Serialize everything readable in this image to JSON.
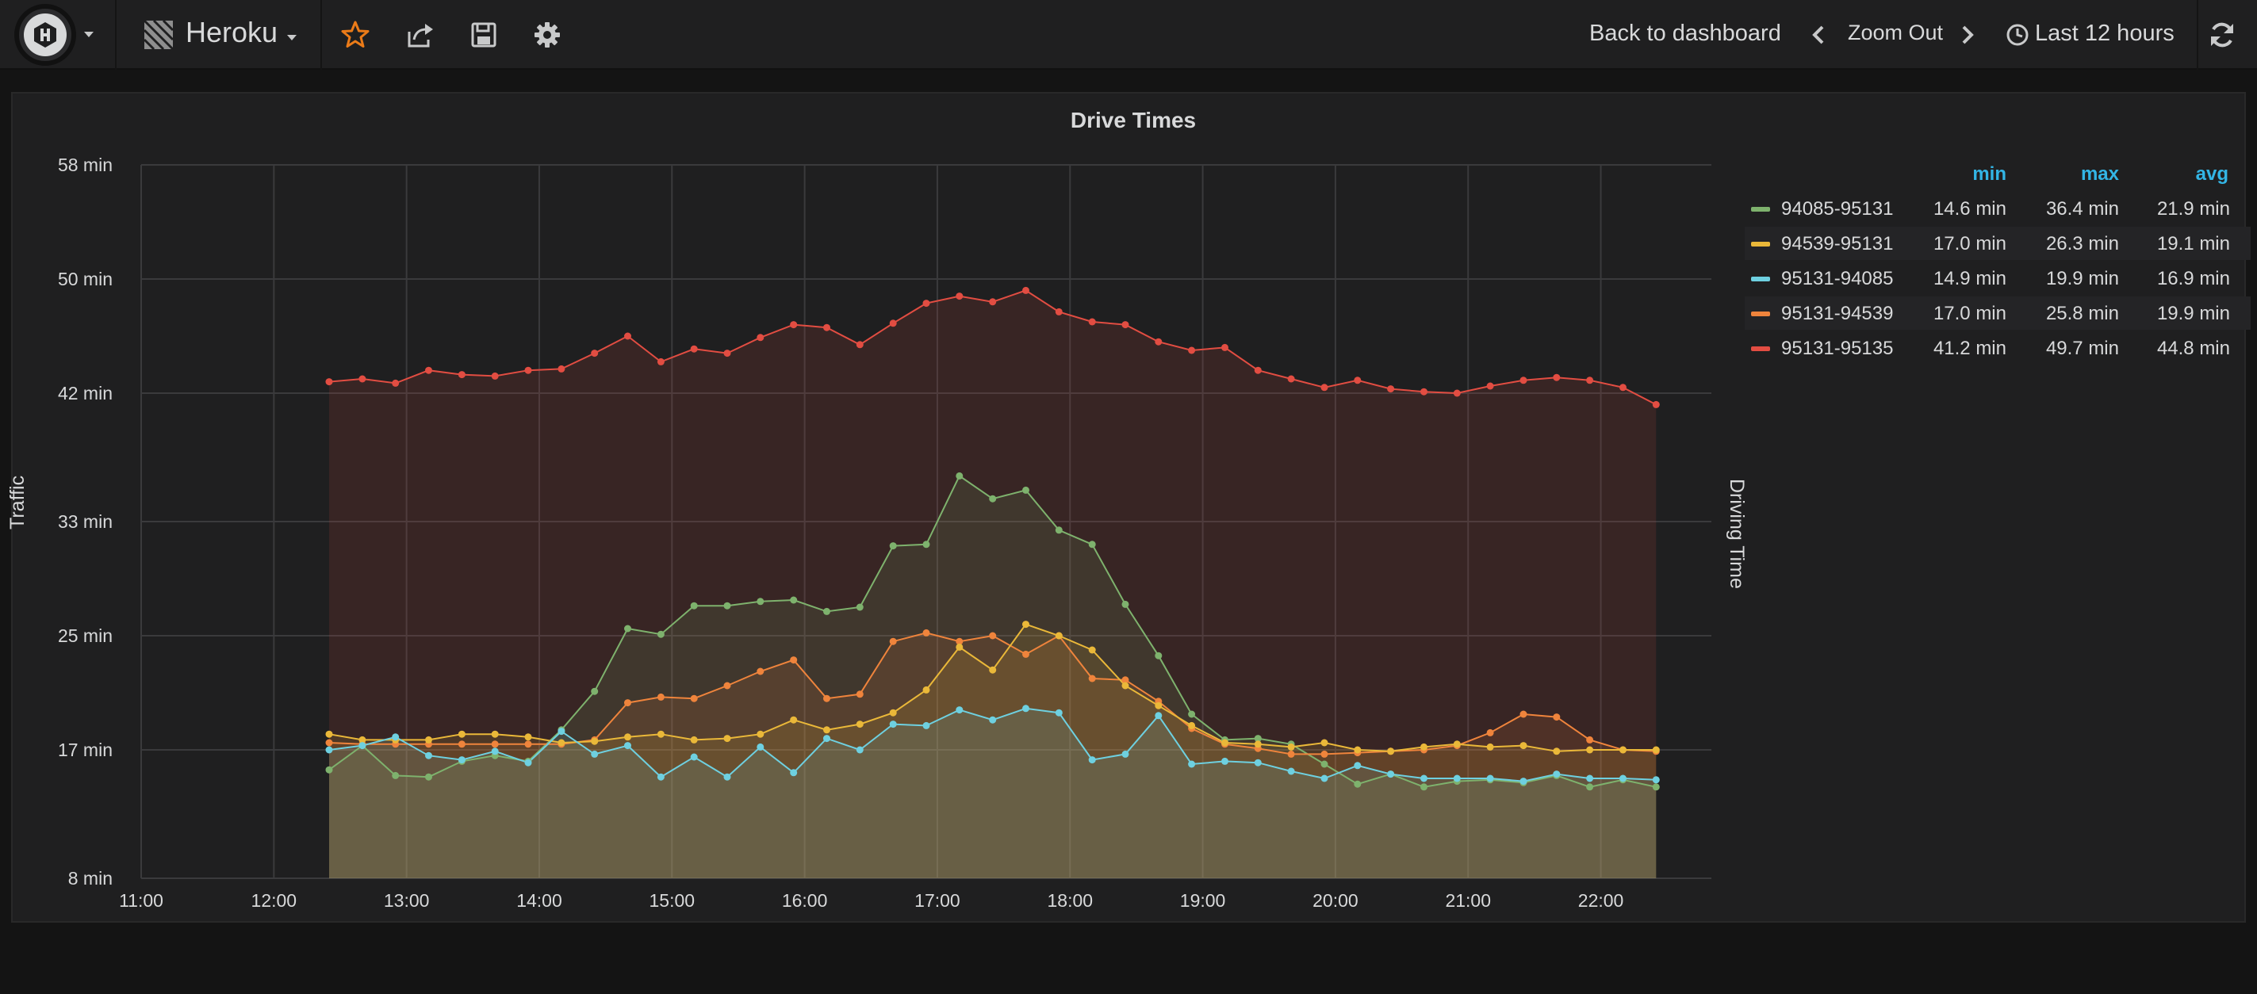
{
  "navbar": {
    "dashboard_title": "Heroku",
    "back_label": "Back to dashboard",
    "zoom_label": "Zoom Out",
    "time_range_label": "Last 12 hours",
    "icons": [
      "logo-icon",
      "grid-icon",
      "star-icon",
      "share-icon",
      "save-icon",
      "gear-icon",
      "chevron-left-icon",
      "chevron-right-icon",
      "clock-icon",
      "refresh-icon"
    ]
  },
  "panel": {
    "title": "Drive Times"
  },
  "legend": {
    "headers": [
      "min",
      "max",
      "avg"
    ],
    "rows": [
      {
        "name": "94085-95131",
        "min": "14.6 min",
        "max": "36.4 min",
        "avg": "21.9 min",
        "color": "#7eb26d"
      },
      {
        "name": "94539-95131",
        "min": "17.0 min",
        "max": "26.3 min",
        "avg": "19.1 min",
        "color": "#eab839"
      },
      {
        "name": "95131-94085",
        "min": "14.9 min",
        "max": "19.9 min",
        "avg": "16.9 min",
        "color": "#6ed0e0"
      },
      {
        "name": "95131-94539",
        "min": "17.0 min",
        "max": "25.8 min",
        "avg": "19.9 min",
        "color": "#ef843c"
      },
      {
        "name": "95131-95135",
        "min": "41.2 min",
        "max": "49.7 min",
        "avg": "44.8 min",
        "color": "#e24d42"
      }
    ]
  },
  "chart_data": {
    "type": "area",
    "title": "Drive Times",
    "ylabel": "Traffic",
    "y2label": "Driving Time",
    "ylim": [
      8,
      58
    ],
    "y_ticks": [
      8,
      17,
      25,
      33,
      42,
      50,
      58
    ],
    "y_tick_labels": [
      "8 min",
      "17 min",
      "25 min",
      "33 min",
      "42 min",
      "50 min",
      "58 min"
    ],
    "xlim": [
      "11:00",
      "22:50"
    ],
    "x_ticks": [
      "11:00",
      "12:00",
      "13:00",
      "14:00",
      "15:00",
      "16:00",
      "17:00",
      "18:00",
      "19:00",
      "20:00",
      "21:00",
      "22:00"
    ],
    "grid": true,
    "x": [
      "12:25",
      "12:40",
      "12:55",
      "13:10",
      "13:25",
      "13:40",
      "13:55",
      "14:10",
      "14:25",
      "14:40",
      "14:55",
      "15:10",
      "15:25",
      "15:40",
      "15:55",
      "16:10",
      "16:25",
      "16:40",
      "16:55",
      "17:10",
      "17:25",
      "17:40",
      "17:55",
      "18:10",
      "18:25",
      "18:40",
      "18:55",
      "19:10",
      "19:25",
      "19:40",
      "19:55",
      "20:10",
      "20:25",
      "20:40",
      "20:55",
      "21:10",
      "21:25",
      "21:40",
      "21:55",
      "22:10",
      "22:25"
    ],
    "series": [
      {
        "name": "94085-95131",
        "color": "#7eb26d",
        "values": [
          15.6,
          17.3,
          15.2,
          15.1,
          16.2,
          16.6,
          16.2,
          18.4,
          21.1,
          25.5,
          25.1,
          27.1,
          27.1,
          27.4,
          27.5,
          26.7,
          27.0,
          31.3,
          31.4,
          36.2,
          34.6,
          35.2,
          32.4,
          31.4,
          27.2,
          23.6,
          19.5,
          17.7,
          17.8,
          17.4,
          16.0,
          14.6,
          15.3,
          14.4,
          14.8,
          14.9,
          14.7,
          15.2,
          14.4,
          14.9,
          14.4
        ]
      },
      {
        "name": "94539-95131",
        "color": "#eab839",
        "values": [
          18.1,
          17.7,
          17.7,
          17.7,
          18.1,
          18.1,
          17.9,
          17.5,
          17.6,
          17.9,
          18.1,
          17.7,
          17.8,
          18.1,
          19.1,
          18.4,
          18.8,
          19.6,
          21.2,
          24.2,
          22.6,
          25.8,
          25.0,
          24.0,
          21.5,
          20.1,
          18.7,
          17.5,
          17.4,
          17.2,
          17.5,
          17.0,
          16.9,
          17.2,
          17.4,
          17.2,
          17.3,
          16.9,
          17.0,
          17.0,
          17.0
        ]
      },
      {
        "name": "95131-94085",
        "color": "#6ed0e0",
        "values": [
          17.0,
          17.3,
          17.9,
          16.6,
          16.3,
          16.9,
          16.1,
          18.3,
          16.7,
          17.3,
          15.1,
          16.5,
          15.1,
          17.2,
          15.4,
          17.8,
          17.0,
          18.8,
          18.7,
          19.8,
          19.1,
          19.9,
          19.6,
          16.3,
          16.7,
          19.4,
          16.0,
          16.2,
          16.1,
          15.5,
          15.0,
          15.9,
          15.3,
          15.0,
          15.0,
          15.0,
          14.8,
          15.3,
          15.0,
          15.0,
          14.9
        ]
      },
      {
        "name": "95131-94539",
        "color": "#ef843c",
        "values": [
          17.5,
          17.4,
          17.4,
          17.4,
          17.4,
          17.4,
          17.4,
          17.4,
          17.7,
          20.3,
          20.7,
          20.6,
          21.5,
          22.5,
          23.3,
          20.6,
          20.9,
          24.6,
          25.2,
          24.6,
          25.0,
          23.7,
          25.0,
          22.0,
          21.9,
          20.4,
          18.5,
          17.4,
          17.1,
          16.7,
          16.7,
          16.8,
          16.9,
          17.0,
          17.3,
          18.2,
          19.5,
          19.3,
          17.7,
          17.0,
          16.9
        ]
      },
      {
        "name": "95131-95135",
        "color": "#e24d42",
        "values": [
          42.8,
          43.0,
          42.7,
          43.6,
          43.3,
          43.2,
          43.6,
          43.7,
          44.8,
          46.0,
          44.2,
          45.1,
          44.8,
          45.9,
          46.8,
          46.6,
          45.4,
          46.9,
          48.3,
          48.8,
          48.4,
          49.2,
          47.7,
          47.0,
          46.8,
          45.6,
          45.0,
          45.2,
          43.6,
          43.0,
          42.4,
          42.9,
          42.3,
          42.1,
          42.0,
          42.5,
          42.9,
          43.1,
          42.9,
          42.4,
          41.2
        ]
      }
    ]
  }
}
